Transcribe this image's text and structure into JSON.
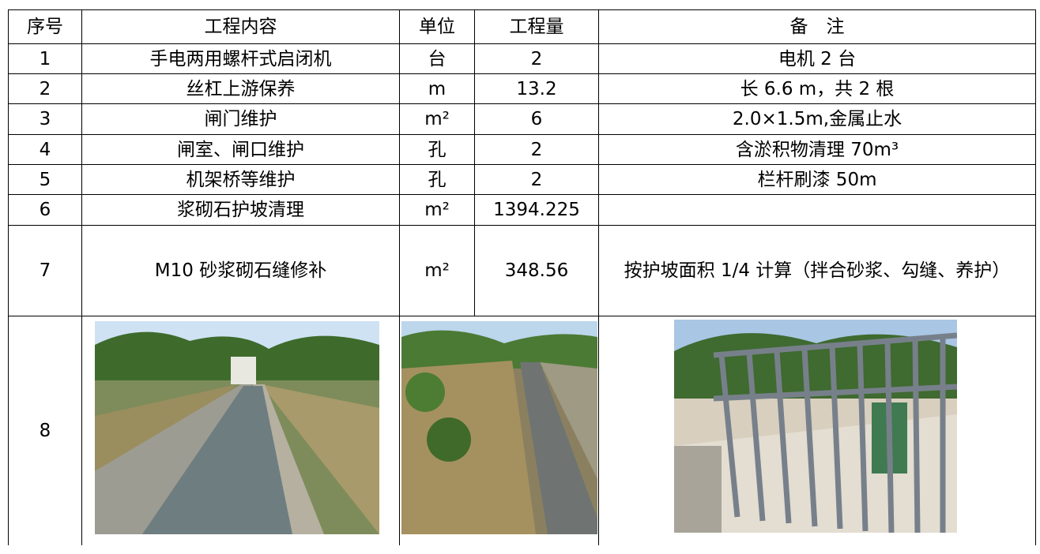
{
  "table": {
    "headers": [
      "序号",
      "工程内容",
      "单位",
      "工程量",
      "备　注"
    ],
    "rows": [
      [
        "1",
        "手电两用螺杆式启闭机",
        "台",
        "2",
        "电机 2 台"
      ],
      [
        "2",
        "丝杠上游保养",
        "m",
        "13.2",
        "长 6.6 m，共 2 根"
      ],
      [
        "3",
        "闸门维护",
        "m²",
        "6",
        "2.0×1.5m,金属止水"
      ],
      [
        "4",
        "闸室、闸口维护",
        "孔",
        "2",
        "含淤积物清理 70m³"
      ],
      [
        "5",
        "机架桥等维护",
        "孔",
        "2",
        "栏杆刷漆 50m"
      ],
      [
        "6",
        "浆砌石护坡清理",
        "m²",
        "1394.225"
      ],
      [
        "7",
        "M10 砂浆砌石缝修补",
        "m²",
        "348.56",
        "按护坡面积 1/4 计算（拌合砂浆、勾缝、养护）"
      ],
      [
        "8"
      ]
    ]
  }
}
